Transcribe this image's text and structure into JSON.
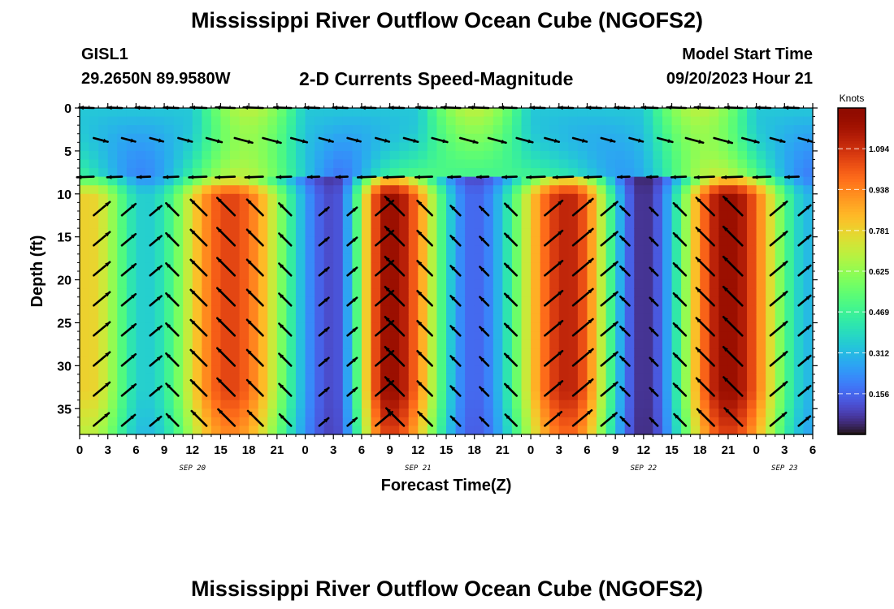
{
  "header": {
    "title": "Mississippi River Outflow Ocean Cube (NGOFS2)",
    "station": "GISL1",
    "coords": "29.2650N  89.9580W",
    "subtitle": "2-D Currents Speed-Magnitude",
    "model_start_label": "Model Start Time",
    "model_start_value": "09/20/2023 Hour 21"
  },
  "footer": {
    "title": "Mississippi River Outflow Ocean Cube (NGOFS2)"
  },
  "chart_data": {
    "type": "heatmap",
    "xlabel": "Forecast Time(Z)",
    "ylabel": "Depth (ft)",
    "x_range_hours": [
      0,
      78
    ],
    "ylim": [
      38,
      0
    ],
    "x_tick_labels": [
      "0",
      "3",
      "6",
      "9",
      "12",
      "15",
      "18",
      "21",
      "0",
      "3",
      "6",
      "9",
      "12",
      "15",
      "18",
      "21",
      "0",
      "3",
      "6",
      "9",
      "12",
      "15",
      "18",
      "21",
      "0",
      "3",
      "6"
    ],
    "y_ticks": [
      0,
      5,
      10,
      15,
      20,
      25,
      30,
      35
    ],
    "date_labels": [
      {
        "label": "SEP 20",
        "hour": 12
      },
      {
        "label": "SEP 21",
        "hour": 36
      },
      {
        "label": "SEP 22",
        "hour": 60
      },
      {
        "label": "SEP 23",
        "hour": 75
      }
    ],
    "colorbar": {
      "title": "Knots",
      "ticks": [
        0.156,
        0.312,
        0.469,
        0.625,
        0.781,
        0.938,
        1.094
      ],
      "tick_labels": [
        "0.156",
        "0.312",
        "0.469",
        "0.625",
        "0.781",
        "0.938",
        "1.094"
      ],
      "range": [
        0.0,
        1.25
      ]
    },
    "colors": {
      "low": "#30123b",
      "mid": "#4ff66b",
      "high": "#7a0403"
    },
    "speed_peaks_knots": [
      {
        "hour": 1,
        "speed": 0.78
      },
      {
        "hour": 16,
        "speed": 1.05
      },
      {
        "hour": 33,
        "speed": 1.2
      },
      {
        "hour": 52,
        "speed": 1.12
      },
      {
        "hour": 69,
        "speed": 1.2
      }
    ],
    "speed_minima_knots": [
      {
        "hour": 7,
        "speed": 0.35
      },
      {
        "hour": 27,
        "speed": 0.1
      },
      {
        "hour": 42,
        "speed": 0.15
      },
      {
        "hour": 60,
        "speed": 0.05
      },
      {
        "hour": 78,
        "speed": 0.3
      }
    ]
  }
}
